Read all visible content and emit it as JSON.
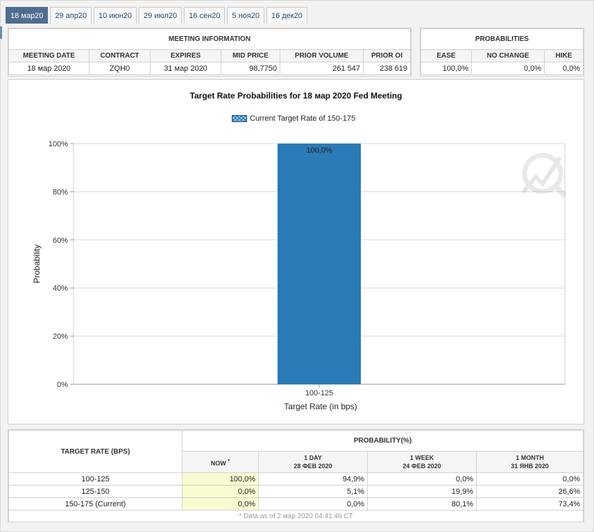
{
  "tabs": [
    "18 мар20",
    "29 апр20",
    "10 июн20",
    "29 июл20",
    "16 сен20",
    "5 ноя20",
    "16 дек20"
  ],
  "meeting_info": {
    "title": "MEETING INFORMATION",
    "headers": [
      "MEETING DATE",
      "CONTRACT",
      "EXPIRES",
      "MID PRICE",
      "PRIOR VOLUME",
      "PRIOR OI"
    ],
    "row": [
      "18 мар 2020",
      "ZQH0",
      "31 мар 2020",
      "98,7750",
      "261 547",
      "238 619"
    ]
  },
  "probabilities": {
    "title": "PROBABILITIES",
    "headers": [
      "EASE",
      "NO CHANGE",
      "HIKE"
    ],
    "row": [
      "100,0%",
      "0,0%",
      "0,0%"
    ]
  },
  "chart_data": {
    "type": "bar",
    "title": "Target Rate Probabilities for 18 мар 2020 Fed Meeting",
    "legend": "Current Target Rate of 150-175",
    "categories": [
      "100-125"
    ],
    "values": [
      100.0
    ],
    "value_labels": [
      "100,0%"
    ],
    "xlabel": "Target Rate (in bps)",
    "ylabel": "Probability",
    "ylim": [
      0,
      100
    ],
    "yticks": [
      "0%",
      "20%",
      "40%",
      "60%",
      "80%",
      "100%"
    ],
    "grid": true,
    "colors": {
      "bar": "#2a7ab6"
    }
  },
  "bottom": {
    "rate_header": "TARGET RATE (BPS)",
    "prob_header": "PROBABILITY(%)",
    "now_label": "NOW",
    "now_mark": "*",
    "periods": [
      {
        "label": "1 DAY",
        "date": "28 ФЕВ 2020"
      },
      {
        "label": "1 WEEK",
        "date": "24 ФЕВ 2020"
      },
      {
        "label": "1 MONTH",
        "date": "31 ЯНВ 2020"
      }
    ],
    "rows": [
      {
        "rate": "100-125",
        "vals": [
          "100,0%",
          "94,9%",
          "0,0%",
          "0,0%"
        ]
      },
      {
        "rate": "125-150",
        "vals": [
          "0,0%",
          "5,1%",
          "19,9%",
          "26,6%"
        ]
      },
      {
        "rate": "150-175 (Current)",
        "vals": [
          "0,0%",
          "0,0%",
          "80,1%",
          "73,4%"
        ]
      }
    ],
    "note": "* Data as of 2 мар 2020 04:41:46 CT"
  }
}
